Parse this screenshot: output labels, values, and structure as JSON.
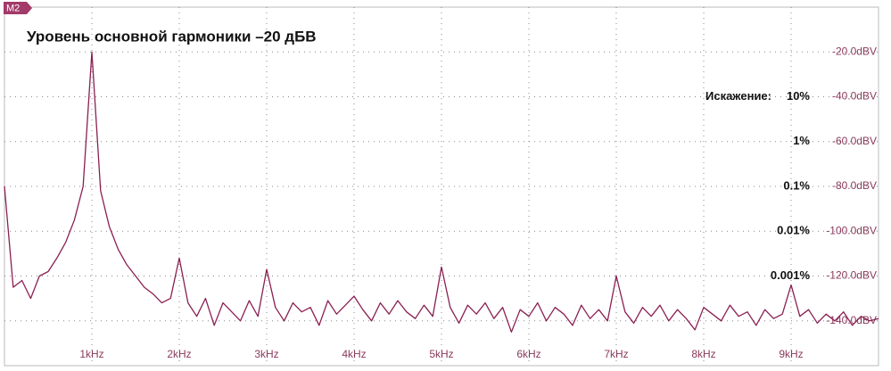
{
  "chart_data": {
    "type": "line",
    "title": "Уровень основной гармоники –20 дБВ",
    "badge": "M2",
    "color": "#8a1f52",
    "grid": true,
    "xlim": [
      0,
      10
    ],
    "ylim": [
      -160,
      0
    ],
    "xticks": [
      {
        "value": 1,
        "label": "1kHz"
      },
      {
        "value": 2,
        "label": "2kHz"
      },
      {
        "value": 3,
        "label": "3kHz"
      },
      {
        "value": 4,
        "label": "4kHz"
      },
      {
        "value": 5,
        "label": "5kHz"
      },
      {
        "value": 6,
        "label": "6kHz"
      },
      {
        "value": 7,
        "label": "7kHz"
      },
      {
        "value": 8,
        "label": "8kHz"
      },
      {
        "value": 9,
        "label": "9kHz"
      }
    ],
    "yticks": [
      {
        "value": -20,
        "label": "-20.0dBV"
      },
      {
        "value": -40,
        "label": "-40.0dBV"
      },
      {
        "value": -60,
        "label": "-60.0dBV"
      },
      {
        "value": -80,
        "label": "-80.0dBV"
      },
      {
        "value": -100,
        "label": "-100.0dBV"
      },
      {
        "value": -120,
        "label": "-120.0dBV"
      },
      {
        "value": -140,
        "label": "-140.0dBV"
      }
    ],
    "distortion_scale": {
      "label": "Искажение:",
      "ticks": [
        {
          "value": -40,
          "label": "10%"
        },
        {
          "value": -60,
          "label": "1%"
        },
        {
          "value": -80,
          "label": "0.1%"
        },
        {
          "value": -100,
          "label": "0.01%"
        },
        {
          "value": -120,
          "label": "0.001%"
        }
      ]
    },
    "x": [
      0.0,
      0.1,
      0.2,
      0.3,
      0.4,
      0.5,
      0.6,
      0.7,
      0.8,
      0.9,
      1.0,
      1.1,
      1.2,
      1.3,
      1.4,
      1.5,
      1.6,
      1.7,
      1.8,
      1.9,
      2.0,
      2.1,
      2.2,
      2.3,
      2.4,
      2.5,
      2.6,
      2.7,
      2.8,
      2.9,
      3.0,
      3.1,
      3.2,
      3.3,
      3.4,
      3.5,
      3.6,
      3.7,
      3.8,
      3.9,
      4.0,
      4.1,
      4.2,
      4.3,
      4.4,
      4.5,
      4.6,
      4.7,
      4.8,
      4.9,
      5.0,
      5.1,
      5.2,
      5.3,
      5.4,
      5.5,
      5.6,
      5.7,
      5.8,
      5.9,
      6.0,
      6.1,
      6.2,
      6.3,
      6.4,
      6.5,
      6.6,
      6.7,
      6.8,
      6.9,
      7.0,
      7.1,
      7.2,
      7.3,
      7.4,
      7.5,
      7.6,
      7.7,
      7.8,
      7.9,
      8.0,
      8.1,
      8.2,
      8.3,
      8.4,
      8.5,
      8.6,
      8.7,
      8.8,
      8.9,
      9.0,
      9.1,
      9.2,
      9.3,
      9.4,
      9.5,
      9.6,
      9.7,
      9.8,
      9.9,
      10.0
    ],
    "values": [
      -80,
      -125,
      -122,
      -130,
      -120,
      -118,
      -112,
      -105,
      -95,
      -80,
      -20,
      -82,
      -98,
      -108,
      -115,
      -120,
      -125,
      -128,
      -132,
      -130,
      -112,
      -132,
      -138,
      -130,
      -142,
      -132,
      -136,
      -140,
      -131,
      -138,
      -117,
      -134,
      -140,
      -132,
      -136,
      -134,
      -142,
      -131,
      -137,
      -133,
      -129,
      -135,
      -140,
      -132,
      -137,
      -131,
      -136,
      -139,
      -133,
      -138,
      -116,
      -134,
      -141,
      -133,
      -137,
      -132,
      -139,
      -134,
      -145,
      -135,
      -138,
      -132,
      -140,
      -134,
      -137,
      -142,
      -133,
      -139,
      -135,
      -140,
      -120,
      -136,
      -141,
      -134,
      -138,
      -133,
      -140,
      -135,
      -139,
      -144,
      -134,
      -137,
      -140,
      -133,
      -138,
      -136,
      -142,
      -135,
      -139,
      -137,
      -124,
      -138,
      -135,
      -141,
      -137,
      -140,
      -136,
      -142,
      -138,
      -140,
      -139
    ]
  }
}
